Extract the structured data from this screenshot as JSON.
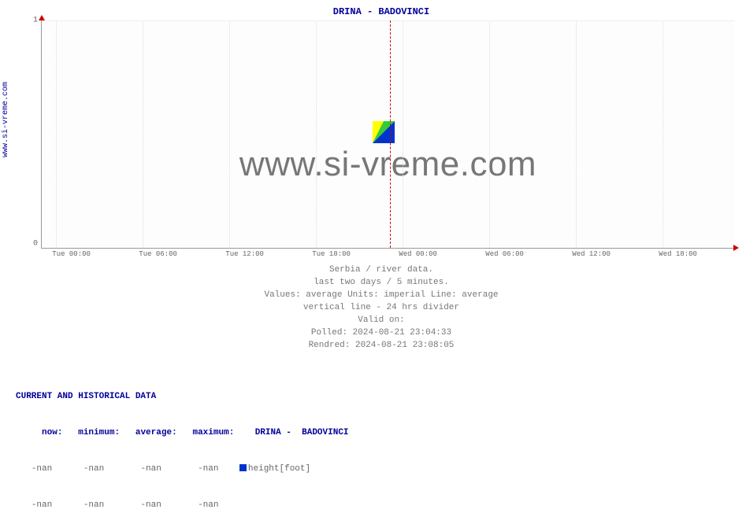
{
  "chart": {
    "title": "DRINA -  BADOVINCI",
    "yaxis_label": "www.si-vreme.com",
    "ylim": [
      0,
      1
    ],
    "yticks": [
      {
        "pos": 0.0,
        "label": "0"
      },
      {
        "pos": 1.0,
        "label": "1"
      }
    ],
    "x_major_count": 8,
    "x_minor_per_major": 6,
    "xticks": [
      {
        "pos": 0.0208,
        "label": "Tue 00:00"
      },
      {
        "pos": 0.1458,
        "label": "Tue 06:00"
      },
      {
        "pos": 0.2708,
        "label": "Tue 12:00"
      },
      {
        "pos": 0.3958,
        "label": "Tue 18:00"
      },
      {
        "pos": 0.5208,
        "label": "Wed 00:00"
      },
      {
        "pos": 0.6458,
        "label": "Wed 06:00"
      },
      {
        "pos": 0.7708,
        "label": "Wed 12:00"
      },
      {
        "pos": 0.8958,
        "label": "Wed 18:00"
      }
    ],
    "divider_pos": 0.502,
    "grid_color": "#dddddd",
    "axis_color": "#999999",
    "arrow_color": "#cc0000",
    "watermark_text": "www.si-vreme.com",
    "logo_colors": {
      "left": "#ffff00",
      "mid": "#33cc33",
      "right": "#0033cc"
    }
  },
  "caption": {
    "l1": "Serbia / river data.",
    "l2": "last two days / 5 minutes.",
    "l3": "Values: average  Units: imperial  Line: average",
    "l4": "vertical line - 24 hrs  divider",
    "l5": "Valid on:",
    "l6": "Polled: 2024-08-21 23:04:33",
    "l7": "Rendred: 2024-08-21 23:08:05"
  },
  "table": {
    "header": "CURRENT AND HISTORICAL DATA",
    "cols": {
      "c1": "now:",
      "c2": "minimum:",
      "c3": "average:",
      "c4": "maximum:",
      "series": "DRINA -  BADOVINCI"
    },
    "swatch_color": "#0033cc",
    "legend_label": "height[foot]",
    "rows": [
      {
        "c1": "-nan",
        "c2": "-nan",
        "c3": "-nan",
        "c4": "-nan"
      },
      {
        "c1": "-nan",
        "c2": "-nan",
        "c3": "-nan",
        "c4": "-nan"
      }
    ]
  }
}
